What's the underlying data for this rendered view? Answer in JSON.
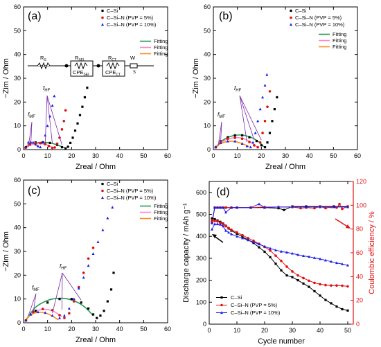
{
  "figure": {
    "background": "#ffffff"
  },
  "colors": {
    "C_Si": "#000000",
    "C_Si_N_5": "#e01010",
    "C_Si_N_10": "#1a1aee",
    "fit_green": "#1e9b50",
    "fit_pink": "#ff88c8",
    "fit_orange": "#ff8c1a",
    "ce_axis": "#e01010"
  },
  "circuit": {
    "labels": [
      "R",
      "S",
      "R",
      "SEI",
      "CPE",
      "SEI",
      "R",
      "CT",
      "CPE",
      "CT",
      "W",
      "S"
    ]
  },
  "chart_data": [
    {
      "type": "scatter",
      "panel": "(a)",
      "xlabel": "Zreal / Ohm",
      "ylabel": "−Zim / Ohm",
      "xlim": [
        0,
        60
      ],
      "ylim": [
        0,
        60
      ],
      "xticks": [
        0,
        10,
        20,
        30,
        40,
        50,
        60
      ],
      "yticks": [
        0,
        10,
        20,
        30,
        40,
        50,
        60
      ],
      "legend": [
        "C–Si",
        "C–Si–N (PVP = 5%)",
        "C–Si–N (PVP = 10%)"
      ],
      "fit_legend": [
        "Fitting",
        "Fitting",
        "Fitting"
      ],
      "annotations": [
        {
          "sym": "f",
          "sub": "MF"
        },
        {
          "sym": "f",
          "sub": "HF"
        }
      ],
      "series": [
        {
          "name": "C–Si",
          "color_key": "C_Si",
          "marker": "square",
          "x": [
            1.0,
            2.5,
            5.0,
            8.0,
            11.0,
            14.0,
            16.0,
            17.5,
            18.5,
            19.5,
            20.5,
            21.5,
            22.5,
            23.5,
            24.5,
            25.5,
            26.5
          ],
          "y": [
            1.0,
            2.4,
            3.0,
            3.1,
            2.8,
            2.0,
            1.0,
            0.5,
            1.2,
            2.8,
            5.0,
            8.0,
            11.0,
            14.5,
            18.0,
            22.0,
            26.0
          ]
        },
        {
          "name": "C–Si–N (PVP = 5%)",
          "color_key": "C_Si_N_5",
          "marker": "circle",
          "x": [
            0.8,
            2.5,
            5.0,
            7.0,
            9.0,
            10.5,
            12.0,
            13.0,
            14.0,
            15.0,
            16.0,
            16.8,
            17.5
          ],
          "y": [
            0.8,
            2.2,
            2.7,
            2.7,
            2.3,
            1.5,
            0.7,
            0.9,
            2.5,
            5.0,
            8.5,
            12.0,
            16.5
          ]
        },
        {
          "name": "C–Si–N (PVP = 10%)",
          "color_key": "C_Si_N_10",
          "marker": "triangle",
          "x": [
            1.0,
            2.0,
            3.0,
            4.0,
            5.0,
            6.0,
            7.0,
            8.0,
            9.0,
            10.0,
            11.0,
            12.0,
            12.8
          ],
          "y": [
            1.0,
            3.0,
            3.2,
            3.0,
            2.2,
            1.5,
            1.0,
            3.0,
            6.0,
            10.0,
            14.0,
            18.5,
            22.5
          ]
        }
      ],
      "fits": [
        {
          "color_key": "fit_green",
          "x": [
            0.5,
            3.0,
            6.0,
            9.0,
            12.0,
            15.0,
            17.5
          ],
          "y": [
            0.5,
            2.2,
            2.9,
            3.0,
            2.6,
            1.6,
            0.6
          ]
        },
        {
          "color_key": "fit_pink",
          "x": [
            0.5,
            3.0,
            6.0,
            9.0,
            11.5,
            13.0
          ],
          "y": [
            0.5,
            2.0,
            2.5,
            2.2,
            1.2,
            0.6
          ]
        },
        {
          "color_key": "fit_orange",
          "x": [
            0.5,
            2.0,
            3.5,
            5.0,
            6.5
          ],
          "y": [
            0.5,
            2.2,
            2.8,
            2.0,
            1.0
          ]
        }
      ]
    },
    {
      "type": "scatter",
      "panel": "(b)",
      "xlabel": "Zreal / Ohm",
      "ylabel": "−Zim / Ohm",
      "xlim": [
        0,
        60
      ],
      "ylim": [
        0,
        60
      ],
      "xticks": [
        0,
        10,
        20,
        30,
        40,
        50,
        60
      ],
      "yticks": [
        0,
        10,
        20,
        30,
        40,
        50,
        60
      ],
      "legend": [
        "C–Si",
        "C–Si–N (PVP = 5%)",
        "C–Si–N (PVP = 10%)"
      ],
      "fit_legend": [
        "Fitting",
        "Fitting",
        "Fitting"
      ],
      "annotations": [
        {
          "sym": "f",
          "sub": "MF"
        },
        {
          "sym": "f",
          "sub": "HF"
        }
      ],
      "series": [
        {
          "name": "C–Si",
          "color_key": "C_Si",
          "marker": "square",
          "x": [
            1.0,
            3.0,
            6.0,
            9.0,
            12.0,
            15.0,
            18.0,
            20.0,
            21.5,
            22.5,
            23.5,
            24.5,
            25.5,
            26.5
          ],
          "y": [
            1.0,
            3.5,
            5.2,
            6.0,
            6.0,
            5.2,
            3.6,
            1.8,
            1.0,
            3.0,
            7.0,
            12.0,
            17.0,
            22.0
          ]
        },
        {
          "name": "C–Si–N (PVP = 5%)",
          "color_key": "C_Si_N_5",
          "marker": "circle",
          "x": [
            1.0,
            3.0,
            6.0,
            9.0,
            12.0,
            15.0,
            17.0,
            18.5,
            19.5,
            20.5,
            21.5,
            22.5,
            23.5
          ],
          "y": [
            1.0,
            3.2,
            4.6,
            5.0,
            4.6,
            3.2,
            1.8,
            1.0,
            3.0,
            7.0,
            12.0,
            18.0,
            24.5
          ]
        },
        {
          "name": "C–Si–N (PVP = 10%)",
          "color_key": "C_Si_N_10",
          "marker": "triangle",
          "x": [
            1.0,
            3.0,
            6.0,
            9.0,
            12.0,
            14.0,
            15.5,
            16.5,
            17.5,
            18.5,
            19.5,
            20.5,
            21.5,
            22.3
          ],
          "y": [
            1.0,
            2.8,
            3.5,
            3.5,
            2.5,
            1.5,
            1.0,
            3.0,
            7.0,
            12.0,
            17.0,
            22.0,
            27.0,
            31.5
          ]
        }
      ],
      "fits": [
        {
          "color_key": "fit_green",
          "x": [
            0.5,
            4.0,
            8.0,
            12.0,
            16.0,
            19.0,
            21.0
          ],
          "y": [
            0.5,
            4.0,
            5.8,
            6.1,
            5.0,
            3.2,
            1.2
          ]
        },
        {
          "color_key": "fit_pink",
          "x": [
            0.5,
            4.0,
            8.0,
            12.0,
            15.5,
            18.0
          ],
          "y": [
            0.5,
            3.5,
            4.9,
            4.8,
            3.2,
            1.2
          ]
        },
        {
          "color_key": "fit_orange",
          "x": [
            0.5,
            3.0,
            6.0,
            9.0,
            12.0,
            15.0
          ],
          "y": [
            0.5,
            2.5,
            3.4,
            3.4,
            2.5,
            1.2
          ]
        }
      ]
    },
    {
      "type": "scatter",
      "panel": "(c)",
      "xlabel": "Zreal / Ohm",
      "ylabel": "−Zim / Ohm",
      "xlim": [
        0,
        60
      ],
      "ylim": [
        0,
        60
      ],
      "xticks": [
        0,
        10,
        20,
        30,
        40,
        50,
        60
      ],
      "yticks": [
        0,
        10,
        20,
        30,
        40,
        50,
        60
      ],
      "legend": [
        "C–Si",
        "C–Si–N (PVP = 5%)",
        "C–Si–N (PVP = 10%)"
      ],
      "fit_legend": [
        "Fitting",
        "Fitting",
        "Fitting"
      ],
      "annotations": [
        {
          "sym": "f",
          "sub": "MF"
        },
        {
          "sym": "f",
          "sub": "HF"
        }
      ],
      "series": [
        {
          "name": "C–Si",
          "color_key": "C_Si",
          "marker": "square",
          "x": [
            1.0,
            5.0,
            10.0,
            15.0,
            20.0,
            24.0,
            27.0,
            29.0,
            30.5,
            32.0,
            33.5,
            35.0,
            36.5,
            37.5
          ],
          "y": [
            1.0,
            5.0,
            8.5,
            10.0,
            10.0,
            8.5,
            6.0,
            3.5,
            2.0,
            3.0,
            5.0,
            9.0,
            14.0,
            21.0
          ]
        },
        {
          "name": "C–Si–N (PVP = 5%)",
          "color_key": "C_Si_N_5",
          "marker": "circle",
          "x": [
            1.0,
            4.0,
            8.0,
            12.0,
            15.0,
            17.0,
            19.0,
            21.0,
            23.0,
            25.0,
            27.0,
            29.0
          ],
          "y": [
            1.0,
            4.5,
            5.8,
            5.3,
            3.2,
            2.0,
            4.0,
            9.0,
            15.0,
            21.0,
            27.0,
            31.5
          ]
        },
        {
          "name": "C–Si–N (PVP = 10%)",
          "color_key": "C_Si_N_10",
          "marker": "triangle",
          "x": [
            1.0,
            3.0,
            6.0,
            9.0,
            12.0,
            15.0,
            17.0,
            19.0,
            21.0,
            23.0,
            25.0,
            27.0,
            29.0,
            31.0,
            33.0,
            35.0,
            37.0
          ],
          "y": [
            1.0,
            3.5,
            4.5,
            4.2,
            3.0,
            2.0,
            3.0,
            6.0,
            10.0,
            14.5,
            19.0,
            24.0,
            29.0,
            34.0,
            39.0,
            44.0,
            48.5
          ]
        }
      ],
      "fits": [
        {
          "color_key": "fit_green",
          "x": [
            0.5,
            5.0,
            10.0,
            15.0,
            20.0,
            25.0,
            29.0
          ],
          "y": [
            0.5,
            6.5,
            9.4,
            10.3,
            9.6,
            7.0,
            3.0
          ]
        },
        {
          "color_key": "fit_pink",
          "x": [
            0.5,
            4.0,
            8.0,
            12.0,
            16.0
          ],
          "y": [
            0.5,
            4.4,
            5.6,
            5.0,
            2.6
          ]
        },
        {
          "color_key": "fit_orange",
          "x": [
            0.5,
            3.0,
            6.0,
            9.0,
            12.0,
            14.5
          ],
          "y": [
            0.5,
            3.3,
            4.4,
            4.1,
            2.8,
            1.2
          ]
        }
      ]
    },
    {
      "type": "line",
      "panel": "(d)",
      "xlabel": "Cycle number",
      "ylabel": "Discharge capacity / mAh g⁻¹",
      "y2label": "Coulombic efficiency / %",
      "xlim": [
        0,
        52
      ],
      "ylim": [
        0,
        650
      ],
      "y2lim": [
        0,
        120
      ],
      "xticks": [
        0,
        10,
        20,
        30,
        40,
        50
      ],
      "yticks": [
        0,
        100,
        200,
        300,
        400,
        500,
        600
      ],
      "y2ticks": [
        0,
        20,
        40,
        60,
        80,
        100,
        120
      ],
      "legend": [
        "C–Si",
        "C–Si–N (PVP = 5%)",
        "C–Si–N (PVP = 10%)"
      ],
      "series": [
        {
          "name": "C–Si",
          "color_key": "C_Si",
          "marker": "square",
          "x": [
            1,
            2,
            3,
            4,
            5,
            6,
            7,
            8,
            10,
            12,
            14,
            16,
            18,
            20,
            22,
            24,
            26,
            28,
            30,
            32,
            34,
            36,
            38,
            40,
            42,
            44,
            46,
            48,
            50
          ],
          "y": [
            482,
            478,
            472,
            466,
            458,
            448,
            436,
            426,
            412,
            398,
            384,
            370,
            350,
            330,
            305,
            275,
            245,
            222,
            214,
            200,
            185,
            170,
            150,
            130,
            110,
            95,
            80,
            68,
            62
          ]
        },
        {
          "name": "C–Si–N (PVP = 5%)",
          "color_key": "C_Si_N_5",
          "marker": "circle",
          "x": [
            1,
            2,
            3,
            4,
            5,
            6,
            7,
            8,
            10,
            12,
            14,
            16,
            18,
            20,
            22,
            24,
            26,
            28,
            30,
            32,
            34,
            36,
            38,
            40,
            42,
            44,
            46,
            48,
            50
          ],
          "y": [
            472,
            470,
            468,
            462,
            455,
            446,
            438,
            430,
            418,
            405,
            392,
            380,
            366,
            352,
            335,
            312,
            288,
            262,
            240,
            222,
            210,
            198,
            188,
            182,
            178,
            176,
            176,
            175,
            172
          ]
        },
        {
          "name": "C–Si–N (PVP = 10%)",
          "color_key": "C_Si_N_10",
          "marker": "triangle",
          "x": [
            1,
            2,
            3,
            4,
            5,
            6,
            7,
            8,
            10,
            12,
            14,
            16,
            18,
            20,
            22,
            24,
            26,
            28,
            30,
            32,
            34,
            36,
            38,
            40,
            42,
            44,
            46,
            48,
            50
          ],
          "y": [
            432,
            456,
            456,
            454,
            446,
            426,
            418,
            410,
            400,
            392,
            383,
            374,
            364,
            354,
            345,
            337,
            331,
            327,
            322,
            316,
            311,
            307,
            302,
            297,
            291,
            285,
            279,
            274,
            268
          ]
        }
      ],
      "ce_series": [
        {
          "name": "C–Si",
          "color_key": "C_Si",
          "marker": "square",
          "x": [
            1,
            2,
            3,
            4,
            5,
            6,
            8,
            10,
            15,
            20,
            25,
            27,
            30,
            35,
            40,
            45,
            50
          ],
          "y": [
            86,
            98,
            98,
            98,
            98,
            98,
            98,
            98,
            98,
            98,
            97.5,
            96,
            99,
            99,
            99,
            99,
            99
          ]
        },
        {
          "name": "C–Si–N (PVP = 5%)",
          "color_key": "C_Si_N_5",
          "marker": "circle",
          "x": [
            1,
            2,
            3,
            4,
            5,
            6,
            8,
            10,
            15,
            20,
            25,
            30,
            33,
            35,
            38,
            40,
            42,
            44,
            46,
            47,
            48,
            50
          ],
          "y": [
            85,
            98,
            98,
            98,
            98,
            98,
            98,
            98,
            98,
            98.5,
            98.5,
            98.5,
            97.5,
            98,
            97.5,
            99,
            97.5,
            98.5,
            98,
            101,
            97,
            99
          ]
        },
        {
          "name": "C–Si–N (PVP = 10%)",
          "color_key": "C_Si_N_10",
          "marker": "triangle",
          "x": [
            1,
            2,
            3,
            4,
            5,
            6,
            8,
            10,
            15,
            18,
            20,
            25,
            30,
            35,
            40,
            45,
            50
          ],
          "y": [
            85,
            98,
            98,
            98,
            98,
            94,
            98,
            98,
            98,
            101,
            98,
            98.5,
            98.5,
            98.5,
            98.5,
            98.5,
            98.5
          ]
        }
      ]
    }
  ]
}
